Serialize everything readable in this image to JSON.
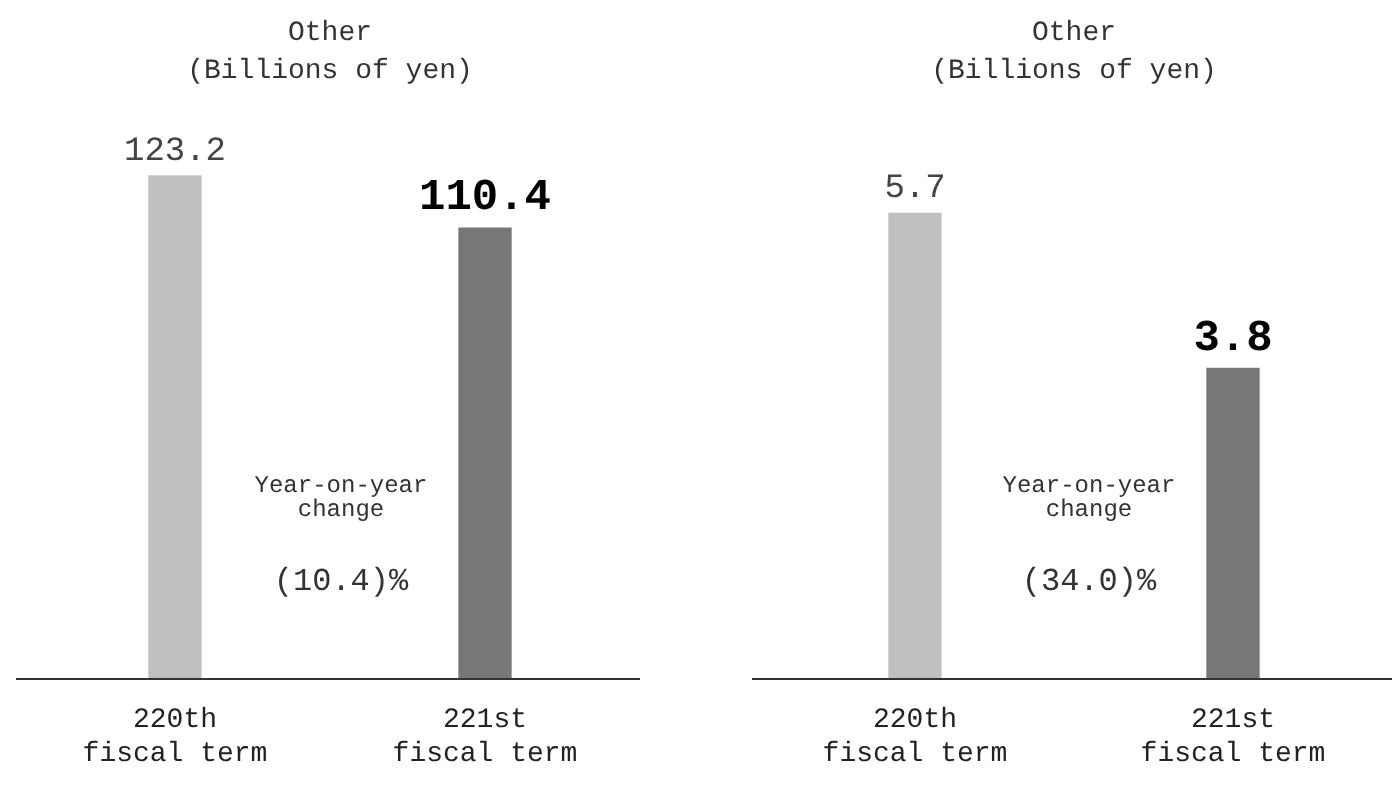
{
  "chart_data": [
    {
      "type": "bar",
      "title": "Other",
      "subtitle": "(Billions of yen)",
      "categories": [
        "220th fiscal term",
        "221st fiscal term"
      ],
      "values": [
        123.2,
        110.4
      ],
      "colors": [
        "#c0c0c0",
        "#777777"
      ],
      "data_labels": true,
      "tick_labels": "x",
      "grid": false,
      "legend": false,
      "annotations": [
        "Year-on-year change",
        "(10.4)%"
      ]
    },
    {
      "type": "bar",
      "title": "Other",
      "subtitle": "(Billions of yen)",
      "categories": [
        "220th fiscal term",
        "221st fiscal term"
      ],
      "values": [
        5.7,
        3.8
      ],
      "colors": [
        "#c0c0c0",
        "#777777"
      ],
      "data_labels": true,
      "tick_labels": "x",
      "grid": false,
      "legend": false,
      "annotations": [
        "Year-on-year change",
        "(34.0)%"
      ]
    }
  ]
}
